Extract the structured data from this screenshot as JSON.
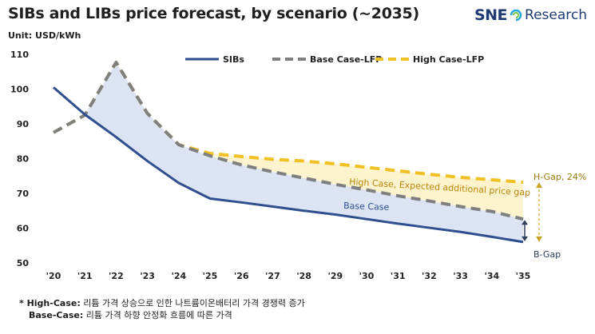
{
  "header": {
    "title": "SIBs and LIBs price forecast, by scenario (~2035)",
    "unit": "Unit: USD/kWh",
    "brand_prefix": "SNE",
    "brand_suffix": "Research"
  },
  "footnote": {
    "line1_key": "* High-Case:",
    "line1_text": "리튬 가격 상승으로 인한 나트륨이온배터리 가격 경쟁력 증가",
    "line2_key": "Base-Case:",
    "line2_text": "리튬 가격 하향 안정화 흐름에 따른 가격"
  },
  "chart_data": {
    "type": "line",
    "categories": [
      "'20",
      "'21",
      "'22",
      "'23",
      "'24",
      "'25",
      "'26",
      "'27",
      "'28",
      "'29",
      "'30",
      "'31",
      "'32",
      "'33",
      "'34",
      "'35"
    ],
    "ylim": [
      50,
      110
    ],
    "yticks": [
      50,
      60,
      70,
      80,
      90,
      100,
      110
    ],
    "grid": false,
    "legend_position": "top",
    "series": [
      {
        "name": "SIBs",
        "style": "solid",
        "color": "#2e4e8f",
        "values": [
          100.5,
          92.7,
          86.2,
          79.3,
          73.0,
          68.5,
          67.4,
          66.2,
          65.0,
          63.9,
          62.6,
          61.3,
          60.1,
          58.9,
          57.5,
          56.0
        ]
      },
      {
        "name": "Base Case-LFP",
        "style": "dashed",
        "color": "#7f7f7f",
        "values": [
          87.5,
          92.5,
          107.7,
          93.0,
          84.0,
          80.8,
          78.2,
          76.2,
          74.4,
          72.6,
          71.0,
          69.3,
          67.8,
          66.2,
          64.8,
          62.6
        ]
      },
      {
        "name": "High Case-LFP",
        "style": "dashed",
        "color": "#f0c024",
        "values": [
          87.5,
          92.5,
          107.7,
          93.0,
          84.0,
          81.5,
          80.6,
          79.8,
          79.3,
          78.5,
          77.5,
          76.5,
          75.5,
          74.6,
          73.9,
          73.2
        ]
      }
    ],
    "annotations": {
      "high_gap_label": "High Case, Expected additional price gap",
      "base_label": "Base Case",
      "h_gap": "H-Gap, 24%",
      "b_gap": "B-Gap"
    },
    "colors": {
      "high_fill": "#fdf3cc",
      "base_fill": "#dce4f3",
      "gap_arrow": "#c9a227",
      "b_arrow": "#2e3e5c"
    }
  }
}
